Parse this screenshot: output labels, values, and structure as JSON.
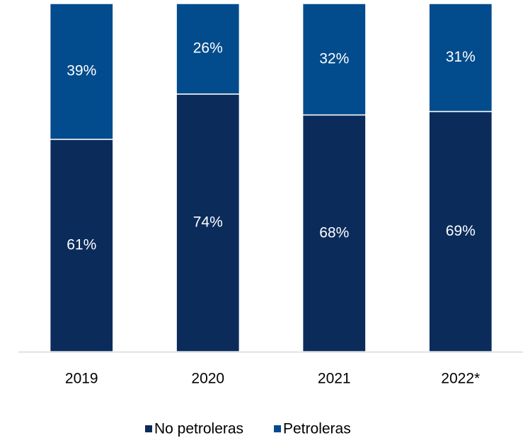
{
  "chart_data": {
    "type": "stacked_bar",
    "categories": [
      "2019",
      "2020",
      "2021",
      "2022*"
    ],
    "series": [
      {
        "name": "No petroleras",
        "color": "#0b2c5b",
        "values": [
          61,
          74,
          68,
          69
        ],
        "value_labels": [
          "61%",
          "74%",
          "68%",
          "69%"
        ]
      },
      {
        "name": "Petroleras",
        "color": "#024b8d",
        "values": [
          39,
          26,
          32,
          31
        ],
        "value_labels": [
          "39%",
          "26%",
          "32%",
          "31%"
        ]
      }
    ],
    "ylim": [
      0,
      100
    ],
    "legend": "bottom"
  }
}
